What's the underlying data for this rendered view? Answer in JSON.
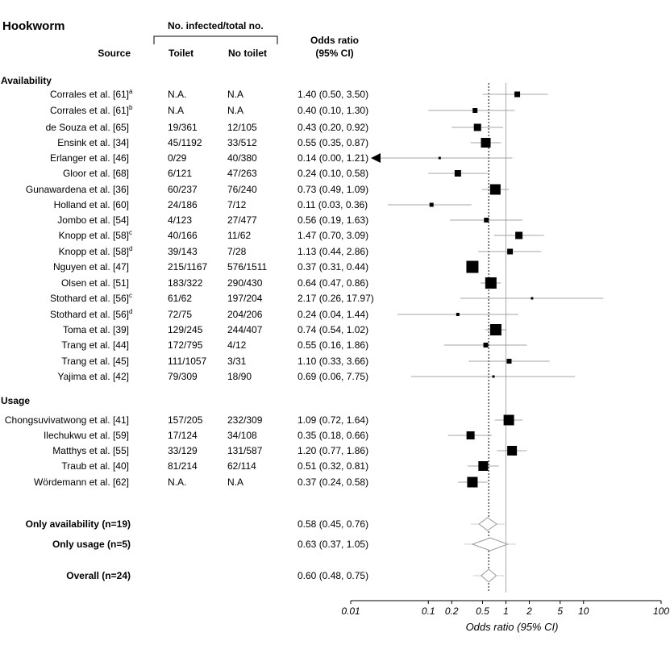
{
  "header": {
    "title": "Hookworm",
    "group_label": "No. infected/total no.",
    "source_label": "Source",
    "toilet_label": "Toilet",
    "no_toilet_label": "No toilet",
    "or_label_1": "Odds ratio",
    "or_label_2": "(95% CI)"
  },
  "sections": {
    "availability": "Availability",
    "usage": "Usage"
  },
  "rows": [
    {
      "source": "Corrales et al. [61]",
      "sup": "a",
      "toilet": "N.A.",
      "notoilet": "N.A",
      "ci_text": "1.40 (0.50, 3.50)",
      "or": 1.4,
      "lo": 0.5,
      "hi": 3.5,
      "size": 7
    },
    {
      "source": "Corrales et al. [61]",
      "sup": "b",
      "toilet": "N.A",
      "notoilet": "N.A",
      "ci_text": "0.40 (0.10, 1.30)",
      "or": 0.4,
      "lo": 0.1,
      "hi": 1.3,
      "size": 6
    },
    {
      "source": "de Souza et al. [65]",
      "sup": "",
      "toilet": "19/361",
      "notoilet": "12/105",
      "ci_text": "0.43 (0.20, 0.92)",
      "or": 0.43,
      "lo": 0.2,
      "hi": 0.92,
      "size": 9
    },
    {
      "source": "Ensink et al. [34]",
      "sup": "",
      "toilet": "45/1192",
      "notoilet": "33/512",
      "ci_text": "0.55 (0.35, 0.87)",
      "or": 0.55,
      "lo": 0.35,
      "hi": 0.87,
      "size": 12
    },
    {
      "source": "Erlanger et al. [46]",
      "sup": "",
      "toilet": "0/29",
      "notoilet": "40/380",
      "ci_text": "0.14 (0.00, 1.21)",
      "or": 0.14,
      "lo": 0.0,
      "hi": 1.21,
      "size": 3
    },
    {
      "source": "Gloor et al. [68]",
      "sup": "",
      "toilet": "6/121",
      "notoilet": "47/263",
      "ci_text": "0.24 (0.10, 0.58)",
      "or": 0.24,
      "lo": 0.1,
      "hi": 0.58,
      "size": 8
    },
    {
      "source": "Gunawardena et al. [36]",
      "sup": "",
      "toilet": "60/237",
      "notoilet": "76/240",
      "ci_text": "0.73 (0.49, 1.09)",
      "or": 0.73,
      "lo": 0.49,
      "hi": 1.09,
      "size": 13
    },
    {
      "source": "Holland et al. [60]",
      "sup": "",
      "toilet": "24/186",
      "notoilet": "7/12",
      "ci_text": "0.11 (0.03, 0.36)",
      "or": 0.11,
      "lo": 0.03,
      "hi": 0.36,
      "size": 5
    },
    {
      "source": "Jombo et al. [54]",
      "sup": "",
      "toilet": "4/123",
      "notoilet": "27/477",
      "ci_text": "0.56 (0.19, 1.63)",
      "or": 0.56,
      "lo": 0.19,
      "hi": 1.63,
      "size": 6
    },
    {
      "source": "Knopp et al. [58]",
      "sup": "c",
      "toilet": "40/166",
      "notoilet": "11/62",
      "ci_text": "1.47 (0.70, 3.09)",
      "or": 1.47,
      "lo": 0.7,
      "hi": 3.09,
      "size": 9
    },
    {
      "source": "Knopp et al. [58]",
      "sup": "d",
      "toilet": "39/143",
      "notoilet": "7/28",
      "ci_text": "1.13 (0.44, 2.86)",
      "or": 1.13,
      "lo": 0.44,
      "hi": 2.86,
      "size": 7
    },
    {
      "source": "Nguyen et al. [47]",
      "sup": "",
      "toilet": "215/1167",
      "notoilet": "576/1511",
      "ci_text": "0.37 (0.31, 0.44)",
      "or": 0.37,
      "lo": 0.31,
      "hi": 0.44,
      "size": 15
    },
    {
      "source": "Olsen et al. [51]",
      "sup": "",
      "toilet": "183/322",
      "notoilet": "290/430",
      "ci_text": "0.64 (0.47, 0.86)",
      "or": 0.64,
      "lo": 0.47,
      "hi": 0.86,
      "size": 14
    },
    {
      "source": "Stothard et al. [56]",
      "sup": "c",
      "toilet": "61/62",
      "notoilet": "197/204",
      "ci_text": "2.17 (0.26, 17.97)",
      "or": 2.17,
      "lo": 0.26,
      "hi": 17.97,
      "size": 3
    },
    {
      "source": "Stothard et al. [56]",
      "sup": "d",
      "toilet": "72/75",
      "notoilet": "204/206",
      "ci_text": "0.24 (0.04, 1.44)",
      "or": 0.24,
      "lo": 0.04,
      "hi": 1.44,
      "size": 4
    },
    {
      "source": "Toma et al. [39]",
      "sup": "",
      "toilet": "129/245",
      "notoilet": "244/407",
      "ci_text": "0.74 (0.54, 1.02)",
      "or": 0.74,
      "lo": 0.54,
      "hi": 1.02,
      "size": 14
    },
    {
      "source": "Trang et al. [44]",
      "sup": "",
      "toilet": "172/795",
      "notoilet": "4/12",
      "ci_text": "0.55 (0.16, 1.86)",
      "or": 0.55,
      "lo": 0.16,
      "hi": 1.86,
      "size": 6
    },
    {
      "source": "Trang et al. [45]",
      "sup": "",
      "toilet": "111/1057",
      "notoilet": "3/31",
      "ci_text": "1.10 (0.33, 3.66)",
      "or": 1.1,
      "lo": 0.33,
      "hi": 3.66,
      "size": 6
    },
    {
      "source": "Yajima et al. [42]",
      "sup": "",
      "toilet": "79/309",
      "notoilet": "18/90",
      "ci_text": "0.69 (0.06, 7.75)",
      "or": 0.69,
      "lo": 0.06,
      "hi": 7.75,
      "size": 3
    },
    {
      "source": "Chongsuvivatwong et al. [41]",
      "sup": "",
      "toilet": "157/205",
      "notoilet": "232/309",
      "ci_text": "1.09 (0.72, 1.64)",
      "or": 1.09,
      "lo": 0.72,
      "hi": 1.64,
      "size": 13
    },
    {
      "source": "Ilechukwu et al. [59]",
      "sup": "",
      "toilet": "17/124",
      "notoilet": "34/108",
      "ci_text": "0.35 (0.18, 0.66)",
      "or": 0.35,
      "lo": 0.18,
      "hi": 0.66,
      "size": 10
    },
    {
      "source": "Matthys et al. [55]",
      "sup": "",
      "toilet": "33/129",
      "notoilet": "131/587",
      "ci_text": "1.20 (0.77, 1.86)",
      "or": 1.2,
      "lo": 0.77,
      "hi": 1.86,
      "size": 12
    },
    {
      "source": "Traub et al. [40]",
      "sup": "",
      "toilet": "81/214",
      "notoilet": "62/114",
      "ci_text": "0.51 (0.32, 0.81)",
      "or": 0.51,
      "lo": 0.32,
      "hi": 0.81,
      "size": 12
    },
    {
      "source": "Wördemann et al. [62]",
      "sup": "",
      "toilet": "N.A.",
      "notoilet": "N.A",
      "ci_text": "0.37 (0.24, 0.58)",
      "or": 0.37,
      "lo": 0.24,
      "hi": 0.58,
      "size": 13
    }
  ],
  "summaries": [
    {
      "label": "Only availability (n=19)",
      "ci_text": "0.58 (0.45, 0.76)",
      "or": 0.58,
      "lo": 0.45,
      "hi": 0.76
    },
    {
      "label": "Only usage (n=5)",
      "ci_text": "0.63 (0.37, 1.05)",
      "or": 0.63,
      "lo": 0.37,
      "hi": 1.05
    },
    {
      "label": "Overall (n=24)",
      "ci_text": "0.60 (0.48, 0.75)",
      "or": 0.6,
      "lo": 0.48,
      "hi": 0.75
    }
  ],
  "chart_data": {
    "type": "scatter",
    "xscale": "log",
    "xlim": [
      0.01,
      100
    ],
    "xticks": [
      0.01,
      0.1,
      0.2,
      0.5,
      1,
      2,
      5,
      10,
      100
    ],
    "xtick_labels": [
      "0.01",
      "0.1",
      "0.2",
      "0.5",
      "1",
      "2",
      "5",
      "10",
      "100"
    ],
    "xlabel": "Odds ratio (95% CI)",
    "reference_line": 1,
    "pooled_line": 0.6
  }
}
